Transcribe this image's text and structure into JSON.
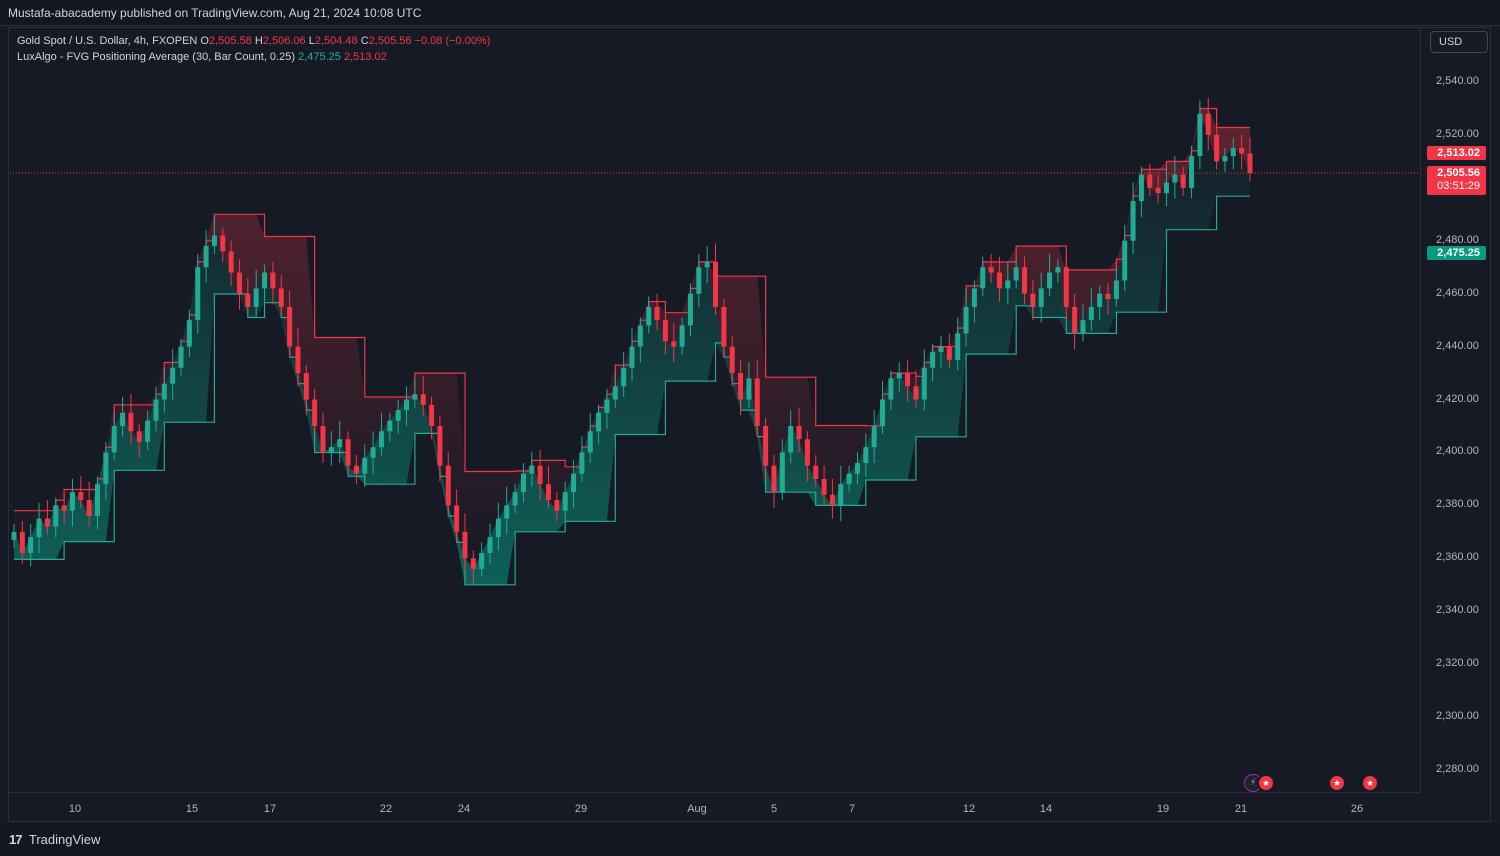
{
  "header": {
    "published_text": "Mustafa-abacademy published on TradingView.com, Aug 21, 2024 10:08 UTC"
  },
  "legend": {
    "symbol": "Gold Spot / U.S. Dollar, 4h, FXOPEN",
    "o_label": "O",
    "o_value": "2,505.58",
    "h_label": "H",
    "h_value": "2,506.06",
    "l_label": "L",
    "l_value": "2,504.48",
    "c_label": "C",
    "c_value": "2,505.56",
    "change": "−0.08 (−0.00%)",
    "indicator": "LuxAlgo - FVG Positioning Average (30, Bar Count, 0.25)",
    "ind_value_1": "2,475.25",
    "ind_value_2": "2,513.02"
  },
  "currency_button": "USD",
  "colors": {
    "background": "#161a25",
    "up": "#22ab94",
    "down": "#f23645",
    "up_body": "#089981",
    "grid": "#2a2e39"
  },
  "price_axis": {
    "ticks": [
      "2,540.00",
      "2,520.00",
      "2,480.00",
      "2,460.00",
      "2,440.00",
      "2,420.00",
      "2,400.00",
      "2,380.00",
      "2,360.00",
      "2,340.00",
      "2,320.00",
      "2,300.00",
      "2,280.00"
    ],
    "tick_values": [
      2540,
      2520,
      2480,
      2460,
      2440,
      2420,
      2400,
      2380,
      2360,
      2340,
      2320,
      2300,
      2280
    ],
    "min": 2270,
    "max": 2550
  },
  "price_tags": {
    "upper_avg": "2,513.02",
    "last_price": "2,505.56",
    "countdown": "03:51:29",
    "lower_avg": "2,475.25"
  },
  "time_axis": {
    "labels": [
      "10",
      "15",
      "17",
      "22",
      "24",
      "29",
      "Aug",
      "5",
      "7",
      "12",
      "14",
      "19",
      "21",
      "26"
    ]
  },
  "footer": {
    "brand": "TradingView"
  },
  "icons": [
    "flash-icon",
    "us-flag-icon",
    "us-flag-icon",
    "us-flag-icon"
  ],
  "chart_data": {
    "type": "candlestick",
    "symbol": "XAUUSD",
    "timeframe": "4h",
    "closes": [
      2370,
      2362,
      2368,
      2375,
      2372,
      2380,
      2378,
      2385,
      2382,
      2376,
      2388,
      2400,
      2410,
      2415,
      2408,
      2404,
      2412,
      2420,
      2426,
      2432,
      2440,
      2450,
      2470,
      2478,
      2482,
      2476,
      2468,
      2460,
      2455,
      2462,
      2468,
      2462,
      2455,
      2440,
      2430,
      2420,
      2410,
      2400,
      2402,
      2405,
      2395,
      2392,
      2398,
      2402,
      2408,
      2412,
      2416,
      2420,
      2422,
      2418,
      2410,
      2395,
      2380,
      2370,
      2360,
      2356,
      2362,
      2368,
      2375,
      2380,
      2385,
      2392,
      2395,
      2388,
      2382,
      2378,
      2385,
      2392,
      2400,
      2408,
      2415,
      2420,
      2425,
      2432,
      2440,
      2448,
      2455,
      2450,
      2442,
      2440,
      2448,
      2460,
      2470,
      2472,
      2455,
      2440,
      2430,
      2420,
      2428,
      2410,
      2395,
      2385,
      2400,
      2410,
      2405,
      2395,
      2390,
      2384,
      2380,
      2388,
      2392,
      2396,
      2402,
      2410,
      2420,
      2428,
      2430,
      2425,
      2420,
      2432,
      2438,
      2440,
      2435,
      2445,
      2455,
      2462,
      2470,
      2468,
      2462,
      2465,
      2470,
      2460,
      2455,
      2462,
      2468,
      2470,
      2455,
      2445,
      2450,
      2455,
      2460,
      2458,
      2465,
      2480,
      2495,
      2505,
      2500,
      2498,
      2502,
      2505,
      2500,
      2512,
      2528,
      2520,
      2510,
      2512,
      2515,
      2513,
      2505.56
    ],
    "ylim": [
      2270,
      2550
    ]
  }
}
